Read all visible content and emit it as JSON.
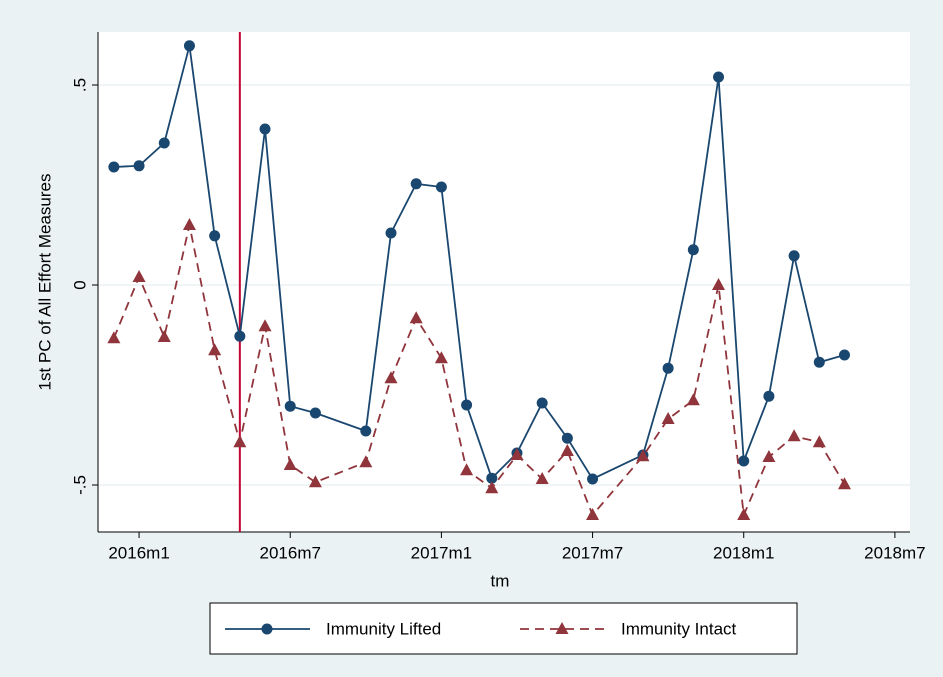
{
  "chart_data": {
    "type": "line",
    "xlabel": "tm",
    "ylabel": "1st PC of All Effort Measures",
    "x": [
      671,
      672,
      673,
      674,
      675,
      676,
      677,
      678,
      679,
      681,
      682,
      683,
      684,
      685,
      686,
      687,
      688,
      689,
      690,
      692,
      693,
      694,
      695,
      696,
      697,
      698,
      699,
      700
    ],
    "series": [
      {
        "name": "Immunity Lifted",
        "color": "#1a476f",
        "marker": "circle",
        "dash": "solid",
        "values": [
          0.295,
          0.298,
          0.355,
          0.598,
          0.123,
          -0.128,
          0.39,
          -0.303,
          -0.32,
          -0.365,
          0.13,
          0.253,
          0.245,
          -0.3,
          -0.483,
          -0.42,
          -0.295,
          -0.383,
          -0.485,
          -0.425,
          -0.208,
          0.088,
          0.52,
          -0.44,
          -0.278,
          0.073,
          -0.193,
          -0.175
        ]
      },
      {
        "name": "Immunity Intact",
        "color": "#90353b",
        "marker": "triangle",
        "dash": "dashed",
        "values": [
          -0.133,
          0.02,
          -0.13,
          0.15,
          -0.163,
          -0.393,
          -0.103,
          -0.45,
          -0.493,
          -0.443,
          -0.233,
          -0.083,
          -0.183,
          -0.463,
          -0.508,
          -0.425,
          -0.485,
          -0.415,
          -0.575,
          -0.428,
          -0.335,
          -0.288,
          0,
          -0.575,
          -0.43,
          -0.378,
          -0.393,
          -0.498
        ]
      }
    ],
    "xline": 676,
    "xline_color": "#c10534",
    "xlim": [
      670.37,
      702.6
    ],
    "xticks": [
      {
        "value": 672,
        "label": "2016m1"
      },
      {
        "value": 678,
        "label": "2016m7"
      },
      {
        "value": 684,
        "label": "2017m1"
      },
      {
        "value": 690,
        "label": "2017m7"
      },
      {
        "value": 696,
        "label": "2018m1"
      },
      {
        "value": 702,
        "label": "2018m7"
      }
    ],
    "ylim": [
      -0.6175,
      0.6325
    ],
    "yticks": [
      {
        "value": -0.5,
        "label": "-.5"
      },
      0,
      {
        "value": 0.5,
        "label": ".5"
      }
    ],
    "grid": true,
    "legend": "bottom"
  }
}
